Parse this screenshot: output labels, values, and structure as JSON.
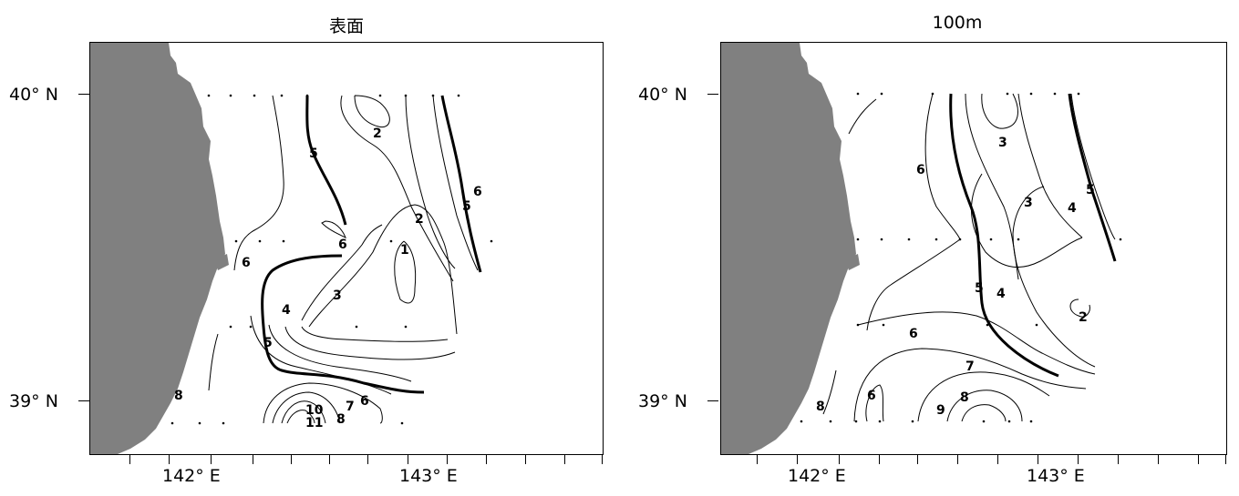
{
  "panels": [
    {
      "title": "表面",
      "lat_labels": {
        "north": "40° N",
        "south": "39° N"
      },
      "lon_labels": {
        "west": "142° E",
        "east": "143° E"
      },
      "contour_labels": [
        "2",
        "5",
        "6",
        "5",
        "2",
        "6",
        "1",
        "6",
        "3",
        "4",
        "5",
        "8",
        "6",
        "7",
        "8",
        "10",
        "11"
      ],
      "bold_contour_value": "5",
      "land_color": "#808080"
    },
    {
      "title": "100m",
      "lat_labels": {
        "north": "40° N",
        "south": "39° N"
      },
      "lon_labels": {
        "west": "142° E",
        "east": "143° E"
      },
      "contour_labels": [
        "3",
        "6",
        "5",
        "3",
        "4",
        "5",
        "4",
        "2",
        "6",
        "7",
        "8",
        "9",
        "6",
        "8"
      ],
      "bold_contour_value": "5",
      "land_color": "#808080"
    }
  ]
}
